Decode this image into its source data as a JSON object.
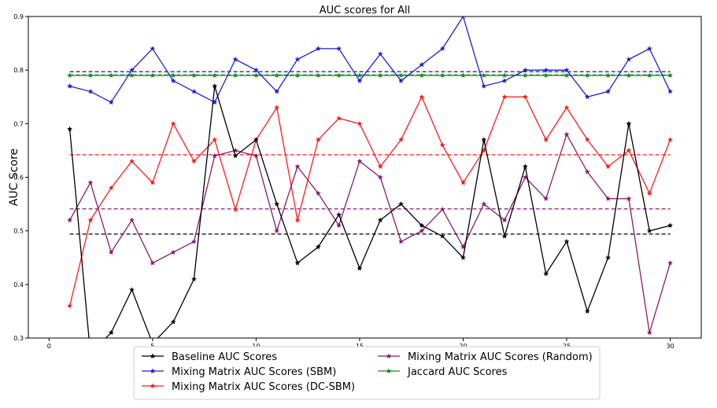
{
  "chart_data": {
    "type": "line",
    "title": "AUC scores for All",
    "xlabel": "",
    "ylabel": "AUC Score",
    "xlim": [
      -1,
      31.5
    ],
    "ylim": [
      0.3,
      0.9
    ],
    "xticks": [
      0,
      5,
      10,
      15,
      20,
      25,
      30
    ],
    "yticks": [
      0.3,
      0.4,
      0.5,
      0.6,
      0.7,
      0.8,
      0.9
    ],
    "grid": false,
    "legend_position": "bottom-center, below plot",
    "x": [
      1,
      2,
      3,
      4,
      5,
      6,
      7,
      8,
      9,
      10,
      11,
      12,
      13,
      14,
      15,
      16,
      17,
      18,
      19,
      20,
      21,
      22,
      23,
      24,
      25,
      26,
      27,
      28,
      29,
      30
    ],
    "series": [
      {
        "name": "Baseline AUC Scores",
        "color": "#000000",
        "values": [
          0.69,
          0.27,
          0.31,
          0.39,
          0.29,
          0.33,
          0.41,
          0.77,
          0.64,
          0.67,
          0.55,
          0.44,
          0.47,
          0.53,
          0.43,
          0.52,
          0.55,
          0.51,
          0.49,
          0.45,
          0.67,
          0.49,
          0.62,
          0.42,
          0.48,
          0.35,
          0.45,
          0.7,
          0.5,
          0.51
        ],
        "mean": 0.494
      },
      {
        "name": "Mixing Matrix AUC Scores (SBM)",
        "color": "#1f1fd8",
        "values": [
          0.77,
          0.76,
          0.74,
          0.8,
          0.84,
          0.78,
          0.76,
          0.74,
          0.82,
          0.8,
          0.76,
          0.82,
          0.84,
          0.84,
          0.78,
          0.83,
          0.78,
          0.81,
          0.84,
          0.9,
          0.77,
          0.78,
          0.8,
          0.8,
          0.8,
          0.75,
          0.76,
          0.82,
          0.84,
          0.76
        ],
        "mean": 0.797
      },
      {
        "name": "Mixing Matrix AUC Scores (DC-SBM)",
        "color": "#ff1a1a",
        "values": [
          0.36,
          0.52,
          0.58,
          0.63,
          0.59,
          0.7,
          0.63,
          0.67,
          0.54,
          0.67,
          0.73,
          0.52,
          0.67,
          0.71,
          0.7,
          0.62,
          0.67,
          0.75,
          0.66,
          0.59,
          0.65,
          0.75,
          0.75,
          0.67,
          0.73,
          0.67,
          0.62,
          0.65,
          0.57,
          0.67
        ],
        "mean": 0.642
      },
      {
        "name": "Mixing Matrix AUC Scores (Random)",
        "color": "#8b1a6b",
        "values": [
          0.52,
          0.59,
          0.46,
          0.52,
          0.44,
          0.46,
          0.48,
          0.64,
          0.65,
          0.64,
          0.5,
          0.62,
          0.57,
          0.51,
          0.63,
          0.6,
          0.48,
          0.5,
          0.54,
          0.47,
          0.55,
          0.52,
          0.6,
          0.56,
          0.68,
          0.61,
          0.56,
          0.56,
          0.31,
          0.44
        ],
        "mean": 0.541
      },
      {
        "name": "Jaccard AUC Scores",
        "color": "#1a8a1a",
        "values": [
          0.79,
          0.79,
          0.79,
          0.79,
          0.79,
          0.79,
          0.79,
          0.79,
          0.79,
          0.79,
          0.79,
          0.79,
          0.79,
          0.79,
          0.79,
          0.79,
          0.79,
          0.79,
          0.79,
          0.79,
          0.79,
          0.79,
          0.79,
          0.79,
          0.79,
          0.79,
          0.79,
          0.79,
          0.79,
          0.79
        ],
        "mean": 0.791
      }
    ],
    "legend_order": [
      0,
      3,
      1,
      4,
      2
    ]
  }
}
